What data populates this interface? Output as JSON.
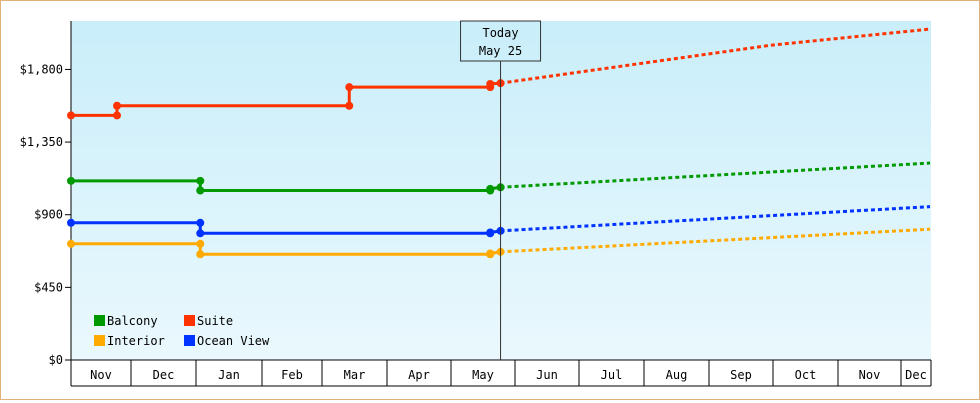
{
  "chart_data": {
    "type": "line",
    "step": true,
    "yticks": [
      "$0",
      "$450",
      "$900",
      "$1,350",
      "$1,800"
    ],
    "ylim": [
      0,
      2100
    ],
    "months": [
      "Nov",
      "Dec",
      "Jan",
      "Feb",
      "Mar",
      "Apr",
      "May",
      "Jun",
      "Jul",
      "Aug",
      "Sep",
      "Oct",
      "Nov",
      "Dec"
    ],
    "today": {
      "line1": "Today",
      "line2": "May 25"
    },
    "grid": false,
    "background": [
      "#c9eefa",
      "#eaf8fd"
    ],
    "legend": {
      "placement": "bottom-left"
    },
    "series": [
      {
        "name": "Suite",
        "color": "#ff3300",
        "points": [
          [
            "Nov 1",
            1515
          ],
          [
            "Nov 24",
            1515
          ],
          [
            "Nov 24",
            1575
          ],
          [
            "Mar 14",
            1575
          ],
          [
            "Mar 14",
            1690
          ],
          [
            "May 20",
            1690
          ],
          [
            "May 20",
            1710
          ],
          [
            "May 25",
            1715
          ]
        ],
        "forecast": [
          [
            "May 25",
            1715
          ],
          [
            "Sep 30",
            1950
          ],
          [
            "Dec 31",
            2050
          ]
        ]
      },
      {
        "name": "Balcony",
        "color": "#009900",
        "points": [
          [
            "Nov 1",
            1110
          ],
          [
            "Jan 3",
            1110
          ],
          [
            "Jan 3",
            1050
          ],
          [
            "May 20",
            1050
          ],
          [
            "May 20",
            1060
          ],
          [
            "May 25",
            1070
          ]
        ],
        "forecast": [
          [
            "May 25",
            1070
          ],
          [
            "Dec 31",
            1220
          ]
        ]
      },
      {
        "name": "Ocean View",
        "color": "#0033ff",
        "points": [
          [
            "Nov 1",
            850
          ],
          [
            "Jan 3",
            850
          ],
          [
            "Jan 3",
            785
          ],
          [
            "May 20",
            785
          ],
          [
            "May 20",
            790
          ],
          [
            "May 25",
            800
          ]
        ],
        "forecast": [
          [
            "May 25",
            800
          ],
          [
            "Dec 31",
            950
          ]
        ]
      },
      {
        "name": "Interior",
        "color": "#ffaa00",
        "points": [
          [
            "Nov 1",
            720
          ],
          [
            "Jan 3",
            720
          ],
          [
            "Jan 3",
            655
          ],
          [
            "May 20",
            655
          ],
          [
            "May 20",
            660
          ],
          [
            "May 25",
            670
          ]
        ],
        "forecast": [
          [
            "May 25",
            670
          ],
          [
            "Dec 31",
            810
          ]
        ]
      }
    ],
    "legend_order": [
      [
        "Balcony",
        "Suite"
      ],
      [
        "Interior",
        "Ocean View"
      ]
    ]
  }
}
